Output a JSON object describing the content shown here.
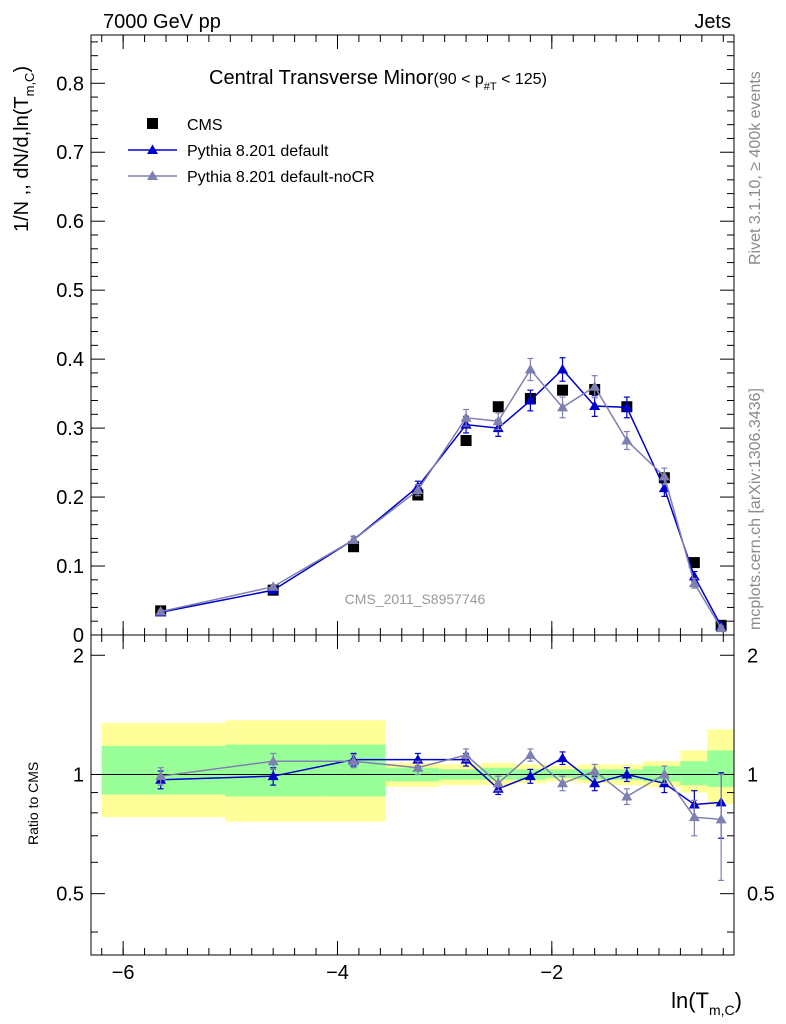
{
  "header": {
    "left": "7000 GeV pp",
    "right": "Jets"
  },
  "side_labels": {
    "rivet": "Rivet 3.1.10, ≥ 400k events",
    "mcplots": "mcplots.cern.ch [arXiv:1306.3436]"
  },
  "chart_data": [
    {
      "type": "line",
      "title": "Central Transverse Minor",
      "title_range": "(90 < p",
      "title_range_sub": "#T",
      "title_range_end": " < 125)",
      "ylabel": "1/N ,, dN/d,ln(T",
      "ylabel_sub": "m,C",
      "ylabel_end": ")",
      "watermark": "CMS_2011_S8957746",
      "xlim": [
        -6.3,
        -0.3
      ],
      "ylim": [
        0,
        0.87
      ],
      "y_ticks": [
        "0",
        "0.1",
        "0.2",
        "0.3",
        "0.4",
        "0.5",
        "0.6",
        "0.7",
        "0.8"
      ],
      "grid": false,
      "legend_position": "top-left",
      "series": [
        {
          "name": "CMS",
          "style": "square-marker",
          "color": "#000000",
          "x": [
            -5.65,
            -4.6,
            -3.85,
            -3.25,
            -2.8,
            -2.5,
            -2.2,
            -1.9,
            -1.6,
            -1.3,
            -0.95,
            -0.67,
            -0.42
          ],
          "y": [
            0.035,
            0.065,
            0.128,
            0.203,
            0.282,
            0.331,
            0.343,
            0.355,
            0.356,
            0.331,
            0.228,
            0.105,
            0.014
          ]
        },
        {
          "name": "Pythia 8.201 default",
          "style": "triangle-line",
          "color": "#0000cc",
          "x": [
            -5.65,
            -4.6,
            -3.85,
            -3.25,
            -2.8,
            -2.5,
            -2.2,
            -1.9,
            -1.6,
            -1.3,
            -0.95,
            -0.67,
            -0.42
          ],
          "y": [
            0.033,
            0.065,
            0.138,
            0.215,
            0.305,
            0.3,
            0.34,
            0.385,
            0.332,
            0.33,
            0.213,
            0.085,
            0.013
          ],
          "err": [
            0.002,
            0.003,
            0.005,
            0.008,
            0.012,
            0.012,
            0.015,
            0.017,
            0.015,
            0.015,
            0.012,
            0.007,
            0.003
          ]
        },
        {
          "name": "Pythia 8.201 default-noCR",
          "style": "triangle-line",
          "color": "#7f7fb2",
          "x": [
            -5.65,
            -4.6,
            -3.85,
            -3.25,
            -2.8,
            -2.5,
            -2.2,
            -1.9,
            -1.6,
            -1.3,
            -0.95,
            -0.67,
            -0.42
          ],
          "y": [
            0.034,
            0.07,
            0.138,
            0.21,
            0.315,
            0.31,
            0.385,
            0.33,
            0.36,
            0.282,
            0.23,
            0.075,
            0.01
          ],
          "err": [
            0.002,
            0.003,
            0.005,
            0.008,
            0.012,
            0.012,
            0.016,
            0.015,
            0.016,
            0.013,
            0.012,
            0.007,
            0.003
          ]
        }
      ]
    },
    {
      "type": "line",
      "ylabel": "Ratio to CMS",
      "xlabel": "ln(T",
      "xlabel_sub": "m,C",
      "xlabel_end": ")",
      "xlim": [
        -6.3,
        -0.3
      ],
      "ylim": [
        0.35,
        2.25
      ],
      "x_ticks": [
        -6,
        -4,
        -2
      ],
      "x_tick_labels": [
        "−6",
        "−4",
        "−2"
      ],
      "y_ticks": [
        0.5,
        1,
        2
      ],
      "y_tick_labels": [
        "0.5",
        "1",
        "2"
      ],
      "y_ticks_right": [
        "0.5",
        "1",
        "2"
      ],
      "reference_line": 1,
      "bands": {
        "edges": [
          -6.2,
          -5.05,
          -4.15,
          -3.55,
          -3.05,
          -2.65,
          -2.35,
          -2.05,
          -1.75,
          -1.45,
          -1.15,
          -0.8,
          -0.55,
          -0.3
        ],
        "outer_lo": [
          0.78,
          0.76,
          0.76,
          0.93,
          0.94,
          0.94,
          0.95,
          0.96,
          0.95,
          0.94,
          0.93,
          0.9,
          0.84
        ],
        "outer_hi": [
          1.35,
          1.37,
          1.37,
          1.07,
          1.06,
          1.07,
          1.06,
          1.05,
          1.06,
          1.06,
          1.08,
          1.15,
          1.3
        ],
        "inner_lo": [
          0.89,
          0.88,
          0.88,
          0.96,
          0.97,
          0.97,
          0.97,
          0.98,
          0.97,
          0.97,
          0.96,
          0.94,
          0.93
        ],
        "inner_hi": [
          1.18,
          1.19,
          1.19,
          1.04,
          1.03,
          1.04,
          1.03,
          1.03,
          1.03,
          1.03,
          1.05,
          1.08,
          1.15
        ],
        "outer_color": "#ffff99",
        "inner_color": "#99ff99"
      },
      "series": [
        {
          "name": "Pythia 8.201 default",
          "color": "#0000cc",
          "x": [
            -5.65,
            -4.6,
            -3.85,
            -3.25,
            -2.8,
            -2.5,
            -2.2,
            -1.9,
            -1.6,
            -1.3,
            -0.95,
            -0.67,
            -0.42
          ],
          "y": [
            0.97,
            0.99,
            1.09,
            1.09,
            1.09,
            0.92,
            0.99,
            1.1,
            0.95,
            1.0,
            0.95,
            0.84,
            0.85
          ],
          "err": [
            0.05,
            0.05,
            0.04,
            0.04,
            0.04,
            0.03,
            0.04,
            0.04,
            0.04,
            0.04,
            0.05,
            0.07,
            0.16
          ]
        },
        {
          "name": "Pythia 8.201 default-noCR",
          "color": "#7f7fb2",
          "x": [
            -5.65,
            -4.6,
            -3.85,
            -3.25,
            -2.8,
            -2.5,
            -2.2,
            -1.9,
            -1.6,
            -1.3,
            -0.95,
            -0.67,
            -0.42
          ],
          "y": [
            0.99,
            1.08,
            1.08,
            1.04,
            1.12,
            0.95,
            1.12,
            0.95,
            1.02,
            0.88,
            1.0,
            0.78,
            0.77
          ],
          "err": [
            0.05,
            0.05,
            0.04,
            0.04,
            0.04,
            0.04,
            0.04,
            0.04,
            0.04,
            0.04,
            0.05,
            0.08,
            0.23
          ]
        }
      ]
    }
  ]
}
